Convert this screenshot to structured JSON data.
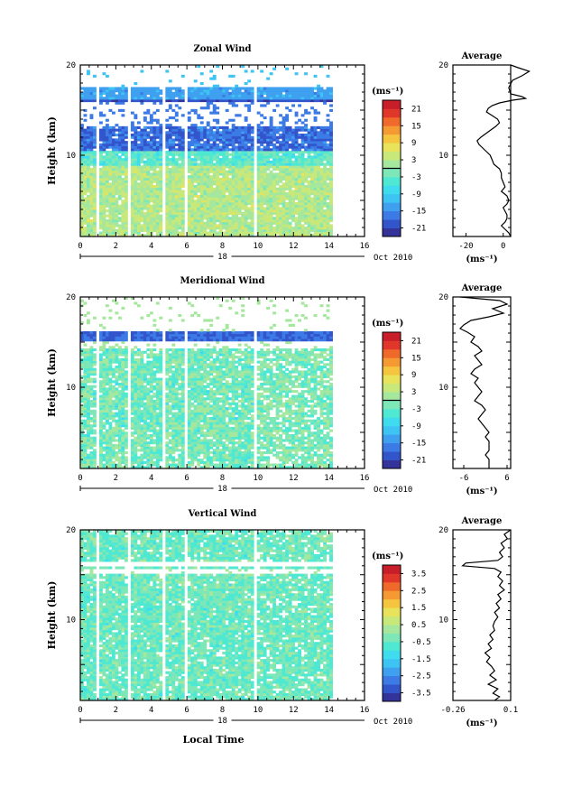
{
  "figure": {
    "x_axis_label": "Local Time",
    "date_label": "Oct 2010",
    "day_label": "18"
  },
  "chart_data": [
    {
      "type": "heatmap",
      "title": "Zonal Wind",
      "xlabel": "",
      "ylabel": "Height (km)",
      "xlim": [
        0,
        16
      ],
      "ylim": [
        1,
        20
      ],
      "x_ticks": [
        0,
        2,
        4,
        6,
        8,
        10,
        12,
        14,
        16
      ],
      "y_ticks": [
        10,
        20
      ],
      "colorbar": {
        "unit": "(ms⁻¹)",
        "min": -24,
        "max": 24,
        "ticks": [
          21,
          15,
          9,
          3,
          -3,
          -9,
          -15,
          -21
        ]
      },
      "data_extent_x": [
        0,
        14.2
      ],
      "gaps_x": [
        [
          0.8,
          1.1
        ],
        [
          2.7,
          2.9
        ],
        [
          4.6,
          4.8
        ],
        [
          5.8,
          6.0
        ],
        [
          9.7,
          9.95
        ]
      ],
      "profile": [
        [
          20,
          4
        ],
        [
          19.7,
          8
        ],
        [
          19.3,
          14
        ],
        [
          18.8,
          10
        ],
        [
          18.3,
          5
        ],
        [
          17.5,
          3
        ],
        [
          16.8,
          4
        ],
        [
          16.5,
          10
        ],
        [
          16.3,
          12
        ],
        [
          16.1,
          5
        ],
        [
          15.8,
          -2
        ],
        [
          15.5,
          -6
        ],
        [
          15.2,
          -8
        ],
        [
          14.8,
          -9
        ],
        [
          14.4,
          -6
        ],
        [
          14.0,
          -3
        ],
        [
          13.6,
          -2
        ],
        [
          13.2,
          -4
        ],
        [
          12.6,
          -8
        ],
        [
          12.0,
          -12
        ],
        [
          11.6,
          -14
        ],
        [
          11.2,
          -13
        ],
        [
          10.8,
          -11
        ],
        [
          10.4,
          -9
        ],
        [
          10.0,
          -7
        ],
        [
          9.5,
          -6
        ],
        [
          9.0,
          -5
        ],
        [
          8.5,
          -2
        ],
        [
          8.0,
          -1
        ],
        [
          7.5,
          -1
        ],
        [
          7.0,
          0
        ],
        [
          6.5,
          1
        ],
        [
          6.0,
          -1
        ],
        [
          5.5,
          2
        ],
        [
          5.0,
          3
        ],
        [
          4.6,
          2
        ],
        [
          4.2,
          0
        ],
        [
          3.8,
          1
        ],
        [
          3.4,
          2
        ],
        [
          3.0,
          2
        ],
        [
          2.6,
          1
        ],
        [
          2.2,
          -1
        ],
        [
          1.8,
          1
        ],
        [
          1.4,
          3
        ],
        [
          1.0,
          4
        ]
      ],
      "profile_xlim": [
        -27,
        4
      ],
      "profile_ticks": [
        -20,
        0
      ],
      "profile_ylim": [
        1,
        20
      ],
      "profile_ylabel_ticks": [
        10,
        20
      ],
      "average_title": "Average",
      "average_unit": "(ms⁻¹)"
    },
    {
      "type": "heatmap",
      "title": "Meridional Wind",
      "xlabel": "",
      "ylabel": "Height (km)",
      "xlim": [
        0,
        16
      ],
      "ylim": [
        1,
        20
      ],
      "x_ticks": [
        0,
        2,
        4,
        6,
        8,
        10,
        12,
        14,
        16
      ],
      "y_ticks": [
        10,
        20
      ],
      "colorbar": {
        "unit": "(ms⁻¹)",
        "min": -24,
        "max": 24,
        "ticks": [
          21,
          15,
          9,
          3,
          -3,
          -9,
          -15,
          -21
        ]
      },
      "data_extent_x": [
        0,
        14.2
      ],
      "gaps_x": [
        [
          0.8,
          1.1
        ],
        [
          2.7,
          2.9
        ],
        [
          4.6,
          4.8
        ],
        [
          5.8,
          6.0
        ],
        [
          9.7,
          9.95
        ]
      ],
      "profile": [
        [
          20,
          -7
        ],
        [
          19.6,
          4
        ],
        [
          19.2,
          6
        ],
        [
          18.7,
          2
        ],
        [
          18.2,
          5
        ],
        [
          17.8,
          1
        ],
        [
          17.4,
          -4
        ],
        [
          16.9,
          -6
        ],
        [
          16.5,
          -7
        ],
        [
          16.1,
          -5
        ],
        [
          15.6,
          -3
        ],
        [
          15.0,
          -4
        ],
        [
          14.5,
          -2
        ],
        [
          14.0,
          -1
        ],
        [
          13.5,
          -3
        ],
        [
          13.0,
          -2
        ],
        [
          12.5,
          -1
        ],
        [
          12.0,
          -3
        ],
        [
          11.5,
          -4
        ],
        [
          11.0,
          -2
        ],
        [
          10.5,
          -3
        ],
        [
          10.0,
          -2
        ],
        [
          9.5,
          -1
        ],
        [
          9.0,
          -2
        ],
        [
          8.5,
          -3
        ],
        [
          8.0,
          -1
        ],
        [
          7.5,
          0
        ],
        [
          7.0,
          -1
        ],
        [
          6.5,
          -2
        ],
        [
          6.0,
          -1
        ],
        [
          5.5,
          0
        ],
        [
          5.0,
          1
        ],
        [
          4.5,
          0
        ],
        [
          4.0,
          1
        ],
        [
          3.5,
          1
        ],
        [
          3.0,
          1
        ],
        [
          2.5,
          0
        ],
        [
          2.0,
          1
        ],
        [
          1.5,
          1
        ],
        [
          1.0,
          1
        ]
      ],
      "profile_xlim": [
        -9,
        7
      ],
      "profile_ticks": [
        -6,
        6
      ],
      "profile_ylim": [
        1,
        20
      ],
      "profile_ylabel_ticks": [
        10,
        20
      ],
      "average_title": "Average",
      "average_unit": "(ms⁻¹)"
    },
    {
      "type": "heatmap",
      "title": "Vertical Wind",
      "xlabel": "Local Time",
      "ylabel": "Height (km)",
      "xlim": [
        0,
        16
      ],
      "ylim": [
        1,
        20
      ],
      "x_ticks": [
        0,
        2,
        4,
        6,
        8,
        10,
        12,
        14,
        16
      ],
      "y_ticks": [
        10,
        20
      ],
      "colorbar": {
        "unit": "(ms⁻¹)",
        "min": -4,
        "max": 4,
        "ticks": [
          3.5,
          2.5,
          1.5,
          0.5,
          -0.5,
          -1.5,
          -2.5,
          -3.5
        ]
      },
      "data_extent_x": [
        0,
        14.2
      ],
      "gaps_x": [
        [
          0.8,
          1.1
        ],
        [
          2.7,
          2.9
        ],
        [
          4.6,
          4.8
        ],
        [
          5.8,
          6.0
        ],
        [
          9.7,
          9.95
        ]
      ],
      "profile": [
        [
          20,
          0.1
        ],
        [
          19.5,
          0.06
        ],
        [
          19.0,
          0.08
        ],
        [
          18.5,
          0.04
        ],
        [
          18.0,
          0.06
        ],
        [
          17.5,
          0.03
        ],
        [
          17.0,
          0.05
        ],
        [
          16.6,
          0.02
        ],
        [
          16.3,
          -0.18
        ],
        [
          16.0,
          -0.2
        ],
        [
          15.7,
          0.0
        ],
        [
          15.3,
          0.04
        ],
        [
          14.8,
          0.02
        ],
        [
          14.3,
          0.05
        ],
        [
          13.8,
          0.03
        ],
        [
          13.3,
          0.06
        ],
        [
          12.8,
          0.02
        ],
        [
          12.3,
          0.04
        ],
        [
          11.8,
          0.01
        ],
        [
          11.3,
          0.03
        ],
        [
          10.8,
          0.0
        ],
        [
          10.3,
          0.02
        ],
        [
          9.8,
          0.0
        ],
        [
          9.3,
          -0.01
        ],
        [
          8.8,
          0.0
        ],
        [
          8.3,
          -0.03
        ],
        [
          7.8,
          -0.01
        ],
        [
          7.3,
          -0.04
        ],
        [
          6.8,
          -0.02
        ],
        [
          6.3,
          -0.06
        ],
        [
          5.8,
          -0.03
        ],
        [
          5.3,
          -0.05
        ],
        [
          4.8,
          -0.02
        ],
        [
          4.3,
          0.0
        ],
        [
          3.8,
          -0.03
        ],
        [
          3.3,
          0.01
        ],
        [
          2.8,
          -0.04
        ],
        [
          2.3,
          0.02
        ],
        [
          1.8,
          -0.01
        ],
        [
          1.4,
          0.03
        ],
        [
          1.0,
          0.0
        ]
      ],
      "profile_xlim": [
        -0.26,
        0.1
      ],
      "profile_ticks": [
        -0.26,
        0.1
      ],
      "profile_ylim": [
        1,
        20
      ],
      "profile_ylabel_ticks": [
        10,
        20
      ],
      "average_title": "Average",
      "average_unit": "(ms⁻¹)"
    }
  ]
}
